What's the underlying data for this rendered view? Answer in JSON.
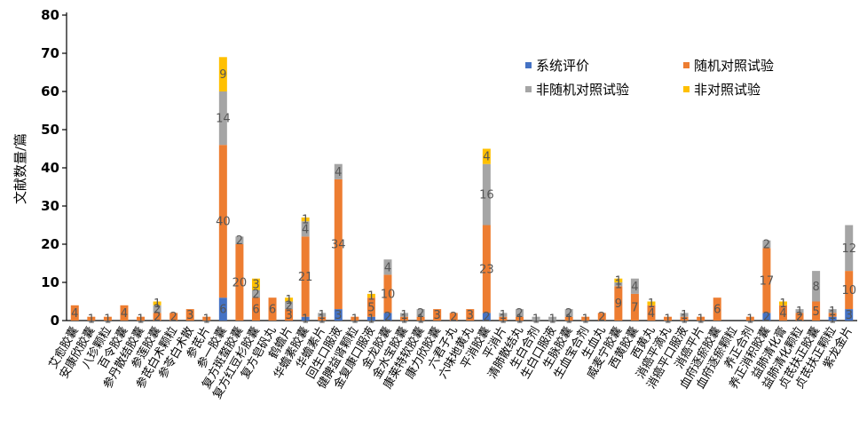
{
  "chart_data": {
    "type": "bar",
    "stacked": true,
    "ylabel": "文献数量/篇",
    "ylim": [
      0,
      80
    ],
    "yticks": [
      0,
      10,
      20,
      30,
      40,
      50,
      60,
      70,
      80
    ],
    "legend_position": "top-right",
    "categories": [
      "艾愈胶囊",
      "安康欣胶囊",
      "八珍颗粒",
      "百令胶囊",
      "参丹散结胶囊",
      "参莲胶囊",
      "参芪白术颗粒",
      "参苓白术散",
      "参芪片",
      "参一胶囊",
      "复方斑蝥胶囊",
      "复方红豆杉胶囊",
      "复方皂矾丸",
      "鹤蟾片",
      "华蟾素胶囊",
      "华蟾素片",
      "回生口服液",
      "健脾益肾颗粒",
      "金复康口服液",
      "金龙胶囊",
      "金水宝胶囊",
      "康莱特软胶囊",
      "康力欣胶囊",
      "六君子丸",
      "六味地黄丸",
      "平消胶囊",
      "平消片",
      "清肺散结丸",
      "生白合剂",
      "生白口服液",
      "生脉胶囊",
      "生血宝合剂",
      "生血丸",
      "威麦宁胶囊",
      "西黄胶囊",
      "西黄丸",
      "消癌平滴丸",
      "消癌平口服液",
      "消癌平片",
      "血府逐瘀胶囊",
      "血府逐瘀颗粒",
      "养正合剂",
      "养正消积胶囊",
      "益肺清化膏",
      "益肺清化颗粒",
      "贞芪扶正胶囊",
      "贞芪扶正颗粒",
      "紫龙金片"
    ],
    "series": [
      {
        "name": "系统评价",
        "color": "#4472C4",
        "values": [
          0,
          0,
          0,
          0,
          0,
          0,
          0,
          0,
          0,
          6,
          0,
          0,
          0,
          0,
          1,
          0,
          3,
          0,
          1,
          2,
          0,
          0,
          0,
          0,
          0,
          2,
          0,
          0,
          0,
          0,
          0,
          0,
          0,
          0,
          0,
          0,
          0,
          0,
          0,
          0,
          0,
          0,
          2,
          0,
          0,
          0,
          1,
          3
        ]
      },
      {
        "name": "随机对照试验",
        "color": "#ED7D31",
        "values": [
          4,
          1,
          1,
          4,
          1,
          2,
          2,
          3,
          1,
          40,
          20,
          6,
          6,
          3,
          21,
          1,
          34,
          1,
          5,
          10,
          1,
          1,
          3,
          2,
          3,
          23,
          1,
          1,
          0,
          0,
          1,
          1,
          2,
          9,
          7,
          4,
          1,
          1,
          1,
          6,
          0,
          1,
          17,
          4,
          2,
          5,
          1,
          10
        ]
      },
      {
        "name": "非随机对照试验",
        "color": "#A5A5A5",
        "values": [
          0,
          0,
          0,
          0,
          0,
          2,
          0,
          0,
          0,
          14,
          2,
          2,
          0,
          2,
          4,
          1,
          4,
          0,
          0,
          4,
          1,
          2,
          0,
          0,
          0,
          16,
          1,
          2,
          1,
          1,
          2,
          0,
          0,
          1,
          4,
          0,
          0,
          1,
          0,
          0,
          0,
          0,
          2,
          0,
          1,
          8,
          1,
          12
        ]
      },
      {
        "name": "非对照试验",
        "color": "#FFC000",
        "values": [
          0,
          0,
          0,
          0,
          0,
          1,
          0,
          0,
          0,
          9,
          0,
          3,
          0,
          1,
          1,
          0,
          0,
          0,
          1,
          0,
          0,
          0,
          0,
          0,
          0,
          4,
          0,
          0,
          0,
          0,
          0,
          0,
          0,
          1,
          0,
          1,
          0,
          0,
          0,
          0,
          0,
          0,
          0,
          1,
          0,
          0,
          0,
          0
        ]
      }
    ]
  }
}
